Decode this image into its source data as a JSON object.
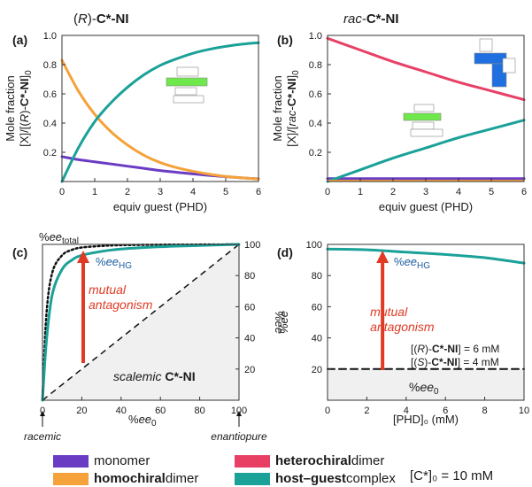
{
  "colors": {
    "monomer": "#6a3cc4",
    "homochiral": "#f5a23a",
    "heterochiral": "#e84065",
    "host_guest": "#1aa198",
    "arrow": "#e03a24",
    "cube_green": "#6ee84a",
    "cube_blue": "#1f6fe0"
  },
  "legend": {
    "items": [
      {
        "key": "monomer",
        "bold": "",
        "rest": "monomer"
      },
      {
        "key": "homochiral",
        "bold": "homochiral",
        "rest": " dimer"
      },
      {
        "key": "heterochiral",
        "bold": "heterochiral",
        "rest": " dimer"
      },
      {
        "key": "host_guest",
        "bold": "host–guest",
        "rest": " complex"
      }
    ],
    "concentration_note": "[C*]₀ = 10 mM"
  },
  "chart_data": [
    {
      "panel": "(a)",
      "type": "line",
      "title": "(R)-C*-NI",
      "xlabel": "equiv guest (PHD)",
      "ylabel_line1": "Mole fraction",
      "ylabel_line2": "[X]/[(R)-C*-NI]₀",
      "xlim": [
        0,
        6
      ],
      "ylim": [
        0,
        1.0
      ],
      "xticks": [
        "0",
        "1",
        "2",
        "3",
        "4",
        "5",
        "6"
      ],
      "yticks": [
        "0.2",
        "0.4",
        "0.6",
        "0.8",
        "1.0"
      ],
      "series": [
        {
          "name": "monomer",
          "color_key": "monomer",
          "x": [
            0,
            0.5,
            1,
            1.5,
            2,
            2.5,
            3,
            3.5,
            4,
            4.5,
            5,
            5.5,
            6
          ],
          "y": [
            0.17,
            0.15,
            0.135,
            0.12,
            0.105,
            0.09,
            0.075,
            0.063,
            0.052,
            0.042,
            0.033,
            0.025,
            0.018
          ]
        },
        {
          "name": "homochiral dimer",
          "color_key": "homochiral",
          "x": [
            0,
            0.5,
            1,
            1.5,
            2,
            2.5,
            3,
            3.5,
            4,
            4.5,
            5,
            5.5,
            6
          ],
          "y": [
            0.83,
            0.62,
            0.46,
            0.34,
            0.25,
            0.18,
            0.13,
            0.095,
            0.07,
            0.05,
            0.035,
            0.025,
            0.017
          ]
        },
        {
          "name": "host–guest complex",
          "color_key": "host_guest",
          "x": [
            0,
            0.5,
            1,
            1.5,
            2,
            2.5,
            3,
            3.5,
            4,
            4.5,
            5,
            5.5,
            6
          ],
          "y": [
            0,
            0.23,
            0.41,
            0.54,
            0.645,
            0.73,
            0.795,
            0.84,
            0.878,
            0.905,
            0.925,
            0.94,
            0.95
          ]
        }
      ]
    },
    {
      "panel": "(b)",
      "type": "line",
      "title": "rac-C*-NI",
      "xlabel": "equiv guest (PHD)",
      "ylabel_line1": "Mole fraction",
      "ylabel_line2": "[X]/[rac-C*-NI]₀",
      "xlim": [
        0,
        6
      ],
      "ylim": [
        0,
        1.0
      ],
      "xticks": [
        "0",
        "1",
        "2",
        "3",
        "4",
        "5",
        "6"
      ],
      "yticks": [
        "0.2",
        "0.4",
        "0.6",
        "0.8",
        "1.0"
      ],
      "series": [
        {
          "name": "monomer",
          "color_key": "monomer",
          "x": [
            0,
            6
          ],
          "y": [
            0.02,
            0.02
          ]
        },
        {
          "name": "heterochiral dimer",
          "color_key": "heterochiral",
          "x": [
            0,
            1,
            2,
            3,
            4,
            5,
            6
          ],
          "y": [
            0.98,
            0.9,
            0.82,
            0.75,
            0.68,
            0.62,
            0.56
          ]
        },
        {
          "name": "host–guest complex",
          "color_key": "host_guest",
          "x": [
            0,
            1,
            2,
            3,
            4,
            5,
            6
          ],
          "y": [
            0,
            0.08,
            0.16,
            0.23,
            0.3,
            0.36,
            0.42
          ]
        }
      ]
    },
    {
      "panel": "(c)",
      "type": "line",
      "xlabel": "%ee₀",
      "ylabel": "%ee",
      "xlim": [
        0,
        100
      ],
      "ylim": [
        0,
        100
      ],
      "xticks": [
        "0",
        "20",
        "40",
        "60",
        "80",
        "100"
      ],
      "yticks": [
        "20",
        "40",
        "60",
        "80",
        "100"
      ],
      "series": [
        {
          "name": "%ee_total",
          "x": [
            0,
            2,
            5,
            10,
            15,
            20,
            30,
            40,
            60,
            80,
            100
          ],
          "y": [
            0,
            55,
            82,
            93,
            96.5,
            98,
            99,
            99.5,
            99.8,
            99.9,
            100
          ]
        },
        {
          "name": "%ee_HG",
          "x": [
            0,
            2,
            5,
            10,
            15,
            20,
            30,
            40,
            60,
            80,
            100
          ],
          "y": [
            0,
            38,
            68,
            84,
            90,
            93,
            95.5,
            97,
            98.5,
            99.3,
            100
          ]
        }
      ],
      "annotations": {
        "ee_total_label": "%ee",
        "ee_total_sub": "total",
        "ee_hg_label": "%ee",
        "ee_hg_sub": "HG",
        "mutual_line1": "mutual",
        "mutual_line2": "antagonism",
        "scalemic_word": "scalemic",
        "scalemic_bold": "C*-NI",
        "racemic": "racemic",
        "enantiopure": "enantiopure"
      }
    },
    {
      "panel": "(d)",
      "type": "line",
      "xlabel": "[PHD]₀ (mM)",
      "ylabel": "%ee",
      "xlim": [
        0,
        10
      ],
      "ylim": [
        0,
        100
      ],
      "xticks": [
        "0",
        "2",
        "4",
        "6",
        "8",
        "10"
      ],
      "yticks": [
        "20",
        "40",
        "60",
        "80",
        "100"
      ],
      "series": [
        {
          "name": "%ee_HG",
          "x": [
            0,
            2,
            4,
            6,
            8,
            10
          ],
          "y": [
            97,
            96.5,
            95,
            93.5,
            91.5,
            88
          ]
        },
        {
          "name": "%ee₀",
          "x": [
            0,
            10
          ],
          "y": [
            20,
            20
          ]
        }
      ],
      "annotations": {
        "ee_hg_label": "%ee",
        "ee_hg_sub": "HG",
        "mutual_line1": "mutual",
        "mutual_line2": "antagonism",
        "conc_r": "[(R)-C*-NI] = 6 mM",
        "conc_s": "[(S)-C*-NI] = 4 mM",
        "ee0_label": "%ee",
        "ee0_sub": "0"
      }
    }
  ]
}
